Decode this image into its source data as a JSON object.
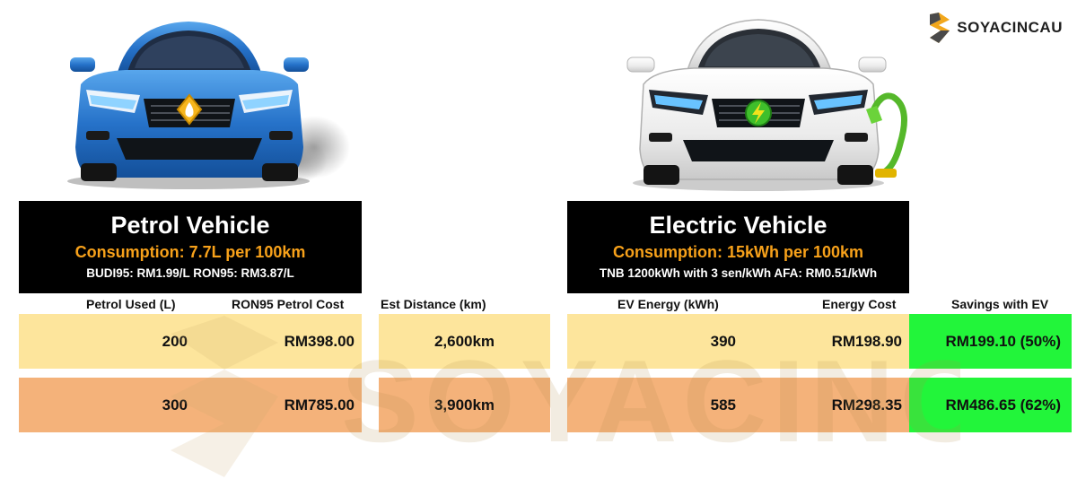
{
  "brand": {
    "name": "SOYACINCAU"
  },
  "petrol": {
    "title": "Petrol Vehicle",
    "consumption": "Consumption: 7.7L per 100km",
    "rates": "BUDI95: RM1.99/L RON95: RM3.87/L"
  },
  "ev": {
    "title": "Electric Vehicle",
    "consumption": "Consumption: 15kWh per 100km",
    "rates": "TNB 1200kWh with 3 sen/kWh AFA: RM0.51/kWh"
  },
  "table": {
    "headers": {
      "petrol_used": "Petrol Used (L)",
      "petrol_cost": "RON95 Petrol Cost",
      "distance": "Est Distance (km)",
      "ev_energy": "EV Energy (kWh)",
      "energy_cost": "Energy Cost",
      "savings": "Savings with EV"
    },
    "rows": [
      {
        "petrol_used": "200",
        "petrol_cost": "RM398.00",
        "distance": "2,600km",
        "ev_energy": "390",
        "energy_cost": "RM198.90",
        "savings": "RM199.10 (50%)"
      },
      {
        "petrol_used": "300",
        "petrol_cost": "RM785.00",
        "distance": "3,900km",
        "ev_energy": "585",
        "energy_cost": "RM298.35",
        "savings": "RM486.65 (62%)"
      }
    ]
  },
  "colors": {
    "accent_orange": "#f7a11a",
    "row_light": "#fde59c",
    "row_dark": "#f4b27a",
    "savings_green": "#22f53a",
    "petrol_car_blue": "#2d7fd3",
    "ev_car_white": "#f2f2f2"
  },
  "icons": {
    "petrol_badge": "fuel-drop-icon",
    "ev_badge": "lightning-bolt-icon",
    "charger": "charging-cable-icon"
  }
}
